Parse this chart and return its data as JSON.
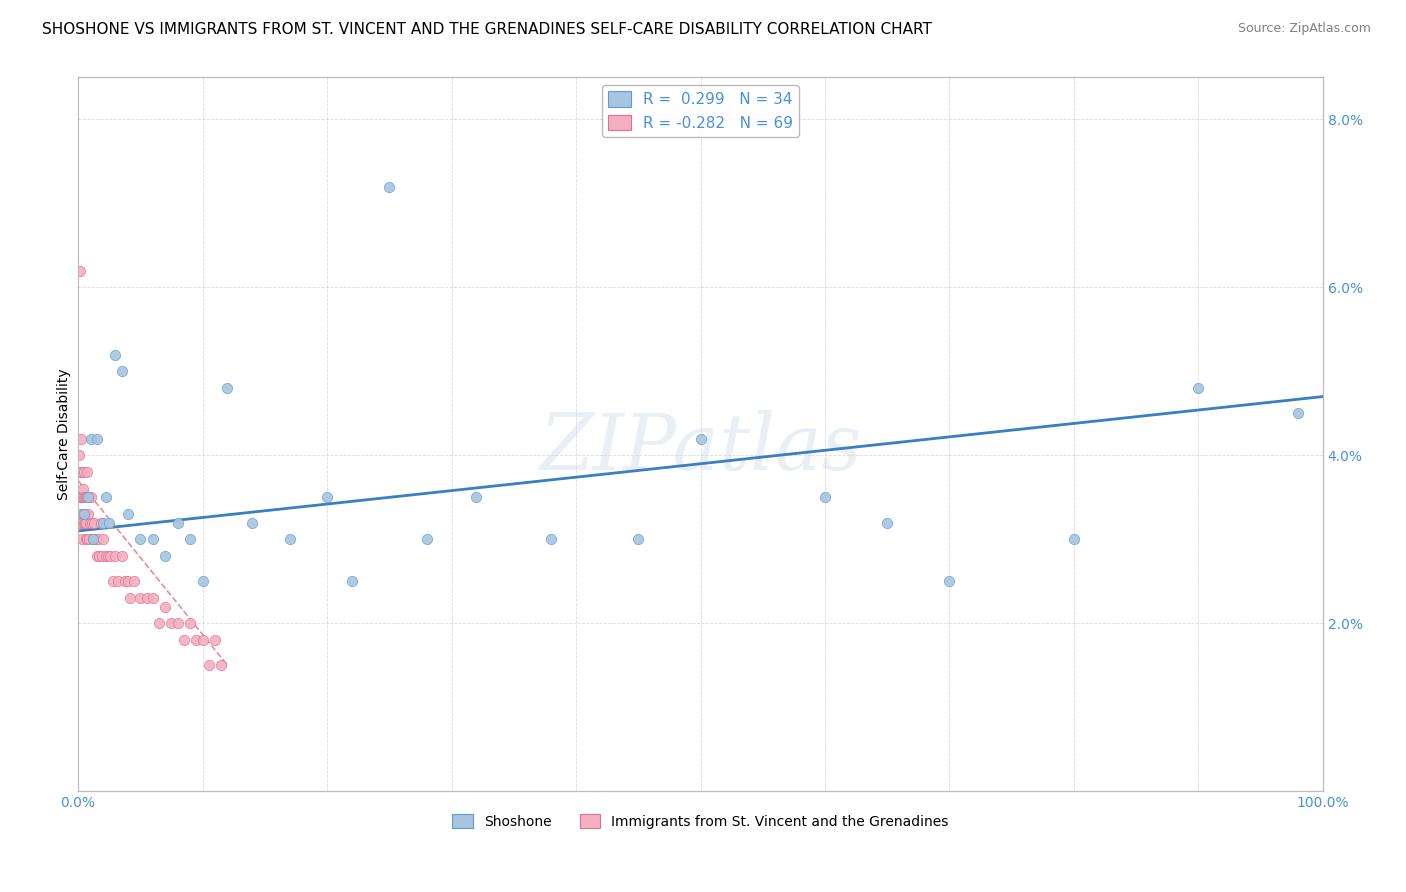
{
  "title": "SHOSHONE VS IMMIGRANTS FROM ST. VINCENT AND THE GRENADINES SELF-CARE DISABILITY CORRELATION CHART",
  "source": "Source: ZipAtlas.com",
  "ylabel": "Self-Care Disability",
  "watermark": "ZIPatlas",
  "legend_blue_r": "R =  0.299",
  "legend_blue_n": "N = 34",
  "legend_pink_r": "R = -0.282",
  "legend_pink_n": "N = 69",
  "blue_scatter_color": "#a8c4e0",
  "blue_edge_color": "#5a9fd4",
  "pink_scatter_color": "#f4b0c0",
  "pink_edge_color": "#e07090",
  "trend_blue_color": "#3a7fbf",
  "trend_pink_color": "#e07090",
  "xlim": [
    0,
    100
  ],
  "ylim": [
    0,
    8.5
  ],
  "yticks": [
    0,
    2,
    4,
    6,
    8
  ],
  "ytick_labels": [
    "",
    "2.0%",
    "4.0%",
    "6.0%",
    "8.0%"
  ],
  "xticks": [
    0,
    10,
    20,
    30,
    40,
    50,
    60,
    70,
    80,
    90,
    100
  ],
  "xtick_labels": [
    "0.0%",
    "",
    "",
    "",
    "",
    "",
    "",
    "",
    "",
    "",
    "100.0%"
  ],
  "blue_x": [
    0.5,
    0.8,
    1.0,
    1.2,
    1.5,
    2.0,
    2.2,
    2.5,
    3.0,
    3.5,
    4.0,
    5.0,
    6.0,
    7.0,
    8.0,
    9.0,
    10.0,
    12.0,
    14.0,
    17.0,
    20.0,
    22.0,
    25.0,
    28.0,
    32.0,
    38.0,
    45.0,
    50.0,
    60.0,
    65.0,
    70.0,
    80.0,
    90.0,
    98.0
  ],
  "blue_y": [
    3.3,
    3.5,
    4.2,
    3.0,
    4.2,
    3.2,
    3.5,
    3.2,
    5.2,
    5.0,
    3.3,
    3.0,
    3.0,
    2.8,
    3.2,
    3.0,
    2.5,
    4.8,
    3.2,
    3.0,
    3.5,
    2.5,
    7.2,
    3.0,
    3.5,
    3.0,
    3.0,
    4.2,
    3.5,
    3.2,
    2.5,
    3.0,
    4.8,
    4.5
  ],
  "pink_x": [
    0.05,
    0.08,
    0.1,
    0.12,
    0.15,
    0.18,
    0.2,
    0.22,
    0.25,
    0.28,
    0.3,
    0.32,
    0.35,
    0.38,
    0.4,
    0.42,
    0.45,
    0.48,
    0.5,
    0.52,
    0.55,
    0.58,
    0.6,
    0.62,
    0.65,
    0.68,
    0.7,
    0.75,
    0.8,
    0.85,
    0.9,
    0.95,
    1.0,
    1.1,
    1.2,
    1.3,
    1.4,
    1.5,
    1.6,
    1.7,
    1.8,
    1.9,
    2.0,
    2.2,
    2.4,
    2.6,
    2.8,
    3.0,
    3.2,
    3.5,
    3.8,
    4.0,
    4.2,
    4.5,
    5.0,
    5.5,
    6.0,
    6.5,
    7.0,
    7.5,
    8.0,
    8.5,
    9.0,
    9.5,
    10.0,
    10.5,
    11.0,
    11.5,
    0.15
  ],
  "pink_y": [
    3.5,
    4.0,
    3.8,
    3.3,
    3.5,
    3.2,
    4.2,
    3.5,
    3.8,
    3.0,
    3.5,
    3.2,
    3.8,
    3.5,
    3.3,
    3.6,
    3.2,
    3.5,
    3.8,
    3.2,
    3.5,
    3.3,
    3.0,
    3.5,
    3.2,
    3.5,
    3.8,
    3.0,
    3.3,
    3.5,
    3.0,
    3.2,
    3.5,
    3.2,
    3.0,
    3.2,
    3.0,
    2.8,
    3.0,
    2.8,
    3.2,
    2.8,
    3.0,
    2.8,
    2.8,
    2.8,
    2.5,
    2.8,
    2.5,
    2.8,
    2.5,
    2.5,
    2.3,
    2.5,
    2.3,
    2.3,
    2.3,
    2.0,
    2.2,
    2.0,
    2.0,
    1.8,
    2.0,
    1.8,
    1.8,
    1.5,
    1.8,
    1.5,
    6.2
  ],
  "blue_trend_x": [
    0,
    100
  ],
  "blue_trend_y": [
    3.1,
    4.7
  ],
  "pink_trend_x": [
    0,
    12
  ],
  "pink_trend_y": [
    3.7,
    1.5
  ],
  "grid_color": "#cccccc",
  "background_color": "#ffffff",
  "title_fontsize": 11,
  "axis_label_fontsize": 10,
  "tick_fontsize": 10,
  "marker_size": 55,
  "legend_fontsize": 11
}
